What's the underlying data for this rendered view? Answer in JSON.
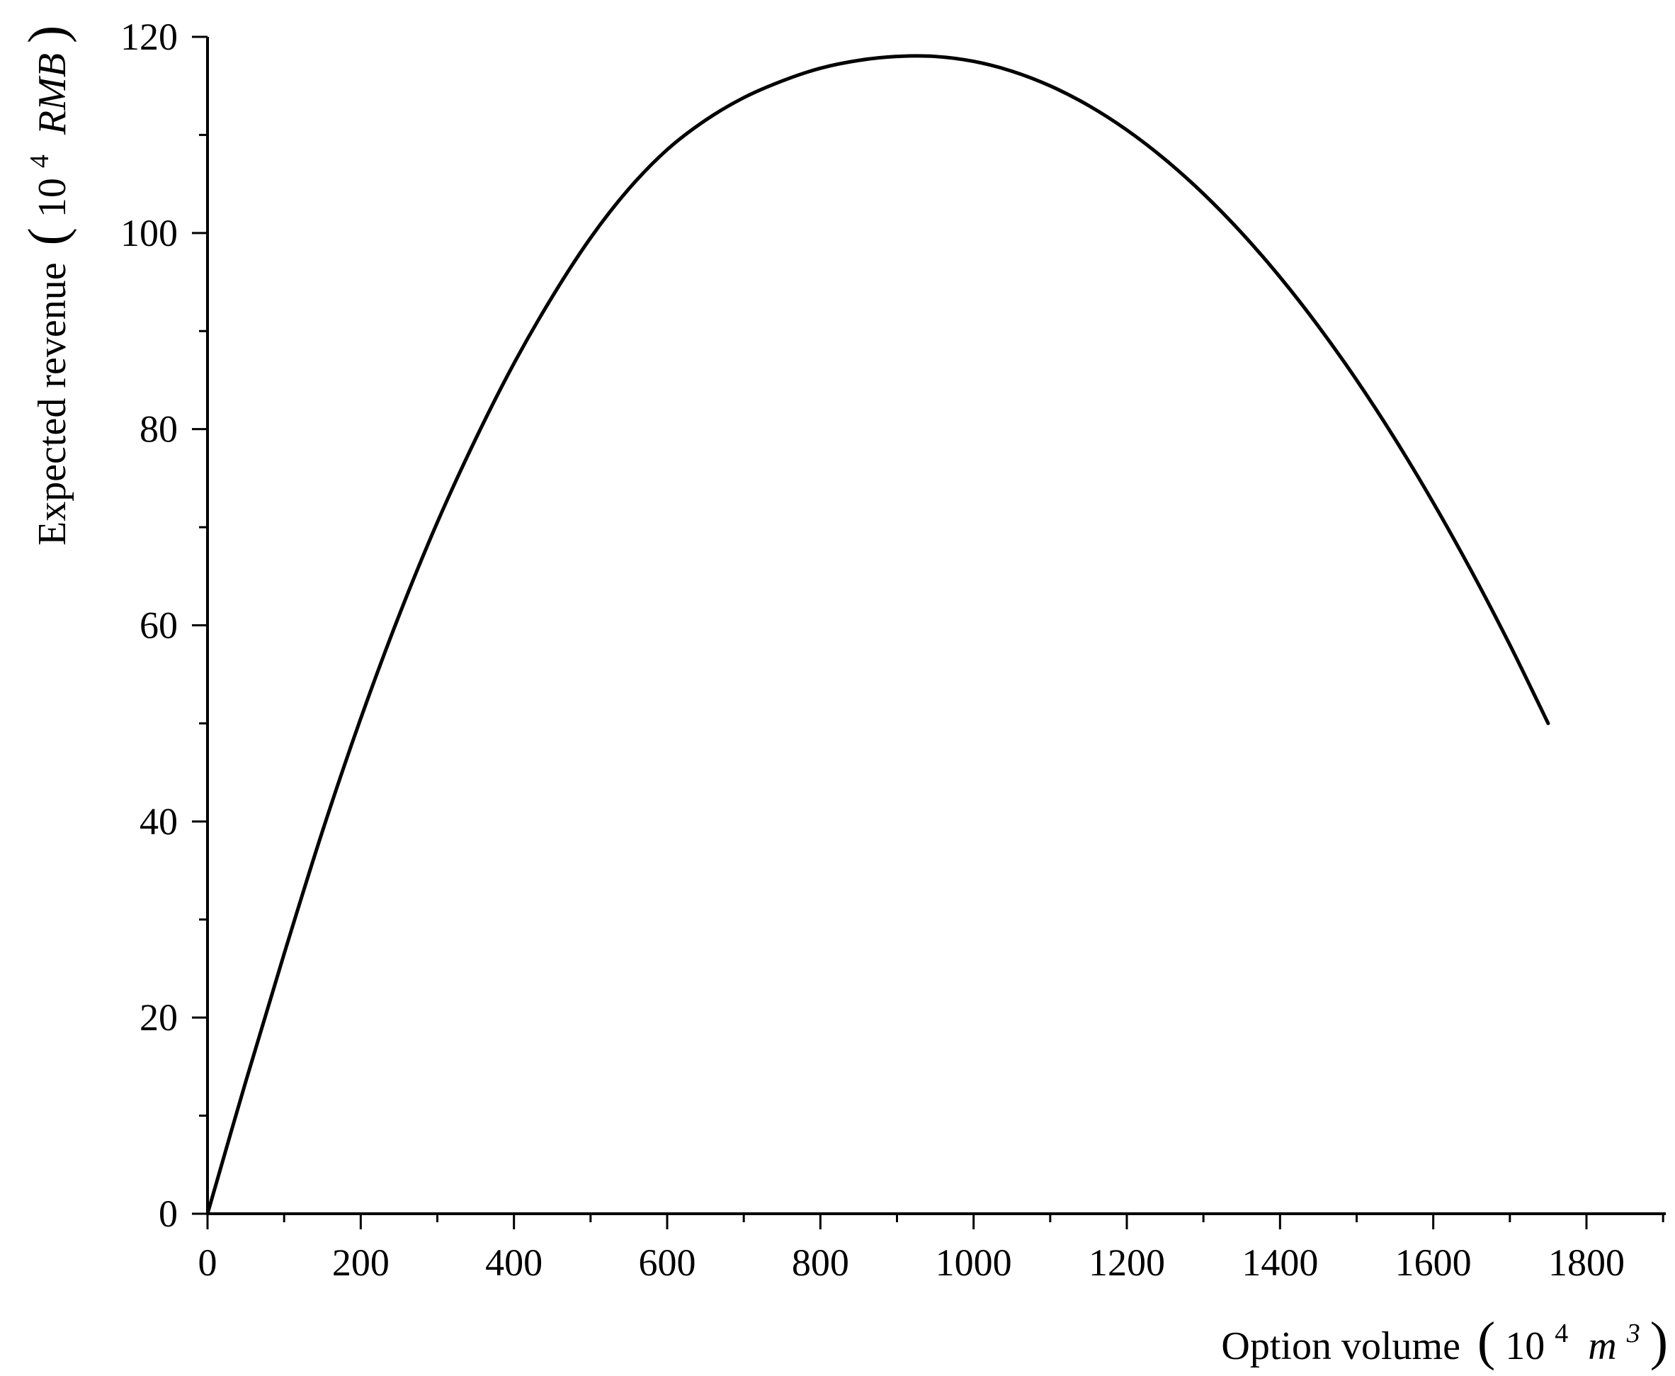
{
  "chart_data": {
    "type": "line",
    "title": "",
    "xlabel": {
      "text": "Option volume",
      "unit_base": "10",
      "unit_base_exp": "4",
      "unit_var": "m",
      "unit_var_exp": "3",
      "open_paren": "(",
      "close_paren": ")"
    },
    "ylabel": {
      "text": "Expected revenue",
      "unit_base": "10",
      "unit_base_exp": "4",
      "unit_var": "RMB",
      "open_paren": "(",
      "close_paren": ")"
    },
    "xlim": [
      0,
      1900
    ],
    "ylim": [
      0,
      120
    ],
    "x_ticks": [
      "0",
      "200",
      "400",
      "600",
      "800",
      "1000",
      "1200",
      "1400",
      "1600",
      "1800"
    ],
    "x_tick_values": [
      0,
      200,
      400,
      600,
      800,
      1000,
      1200,
      1400,
      1600,
      1800
    ],
    "x_minor_ticks": [
      100,
      300,
      500,
      700,
      900,
      1100,
      1300,
      1500,
      1700,
      1900
    ],
    "y_ticks": [
      "0",
      "20",
      "40",
      "60",
      "80",
      "100",
      "120"
    ],
    "y_tick_values": [
      0,
      20,
      40,
      60,
      80,
      100,
      120
    ],
    "y_minor_ticks": [
      10,
      30,
      50,
      70,
      90,
      110
    ],
    "grid": false,
    "legend": "none",
    "series": [
      {
        "color": "#000000",
        "x": [
          0,
          50,
          100,
          150,
          200,
          250,
          300,
          350,
          400,
          450,
          500,
          550,
          600,
          650,
          700,
          750,
          800,
          850,
          900,
          950,
          1000,
          1050,
          1100,
          1150,
          1200,
          1250,
          1300,
          1350,
          1400,
          1450,
          1500,
          1550,
          1600,
          1650,
          1700,
          1750
        ],
        "y": [
          0,
          13.5,
          26.5,
          39,
          50.5,
          61,
          70.5,
          79,
          86.7,
          93.5,
          99.5,
          104.5,
          108.5,
          111.5,
          113.8,
          115.5,
          116.8,
          117.6,
          118,
          118,
          117.5,
          116.5,
          115,
          113,
          110.5,
          107.5,
          104,
          100,
          95.5,
          90.5,
          85,
          79,
          72.5,
          65.5,
          58,
          50
        ]
      }
    ]
  }
}
